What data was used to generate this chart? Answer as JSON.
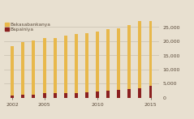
{
  "years": [
    2002,
    2003,
    2004,
    2005,
    2006,
    2007,
    2008,
    2009,
    2010,
    2011,
    2012,
    2013,
    2014,
    2015
  ],
  "bakasabankanya": [
    17500,
    18800,
    19200,
    19500,
    19700,
    20300,
    20700,
    20800,
    21200,
    21700,
    21900,
    22600,
    23800,
    25200
  ],
  "bapainiya": [
    700,
    900,
    1100,
    1500,
    1500,
    1600,
    1700,
    2000,
    2300,
    2500,
    2700,
    3000,
    3400,
    4200
  ],
  "color_baka": "#E8B84B",
  "color_bapa": "#8B2020",
  "bg_color": "#E8E0D0",
  "legend_baka": "Bakasabankanya",
  "legend_bapa": "Bapainiya",
  "ylim": [
    0,
    27000
  ],
  "yticks": [
    0,
    5000,
    10000,
    15000,
    20000,
    25000
  ],
  "ytick_labels": [
    "0",
    "5,000",
    "10,000",
    "15,000",
    "20,000",
    "25,000"
  ],
  "xtick_years": [
    2002,
    2005,
    2010,
    2015
  ],
  "grid_color": "#C8BFB0",
  "text_color": "#5a4a3a",
  "bar_width": 0.3
}
